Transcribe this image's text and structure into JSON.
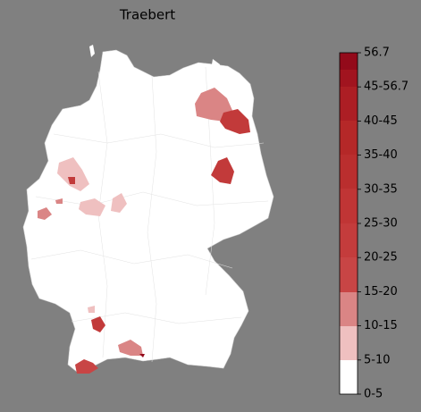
{
  "title": "Traebert",
  "colorbar": {
    "labels": [
      "0-5",
      "5-10",
      "10-15",
      "15-20",
      "20-25",
      "25-30",
      "30-35",
      "35-40",
      "40-45",
      "45-56.7",
      "56.7"
    ]
  }
}
